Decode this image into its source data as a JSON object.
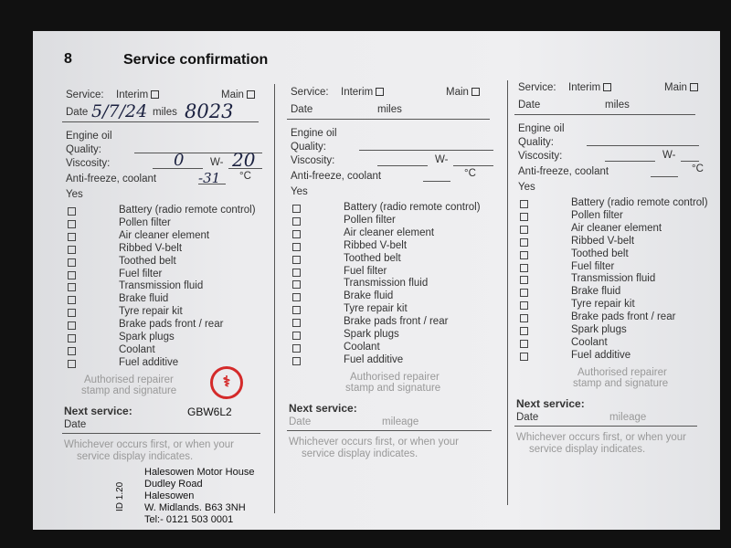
{
  "page_number": "8",
  "title": "Service confirmation",
  "labels": {
    "service": "Service:",
    "interim": "Interim",
    "main": "Main",
    "date": "Date",
    "miles": "miles",
    "engine_oil": "Engine oil",
    "quality": "Quality:",
    "viscosity": "Viscosity:",
    "w": "W-",
    "antifreeze": "Anti-freeze, coolant",
    "celsius": "°C",
    "yes": "Yes",
    "repairer": "Authorised repairer",
    "stamp_sig": "stamp and signature",
    "next_service": "Next service:",
    "mileage": "mileage",
    "whichever1": "Whichever occurs first, or when your",
    "whichever2": "service display indicates."
  },
  "checklist": [
    "Battery (radio remote control)",
    "Pollen filter",
    "Air cleaner element",
    "Ribbed V-belt",
    "Toothed belt",
    "Fuel filter",
    "Transmission fluid",
    "Brake fluid",
    "Tyre repair kit",
    "Brake pads front / rear",
    "Spark plugs",
    "Coolant",
    "Fuel additive"
  ],
  "handwritten": {
    "date": "5/7/24",
    "miles": "8023",
    "viscosity_low": "0",
    "viscosity_high": "20",
    "antifreeze": "-31"
  },
  "dealer_stamp": {
    "code": "GBW6L2",
    "lines": [
      "Halesowen Motor House",
      "Dudley Road",
      "Halesowen",
      "W. Midlands. B63 3NH",
      "Tel:- 0121 503 0001"
    ],
    "side": "ID 1.20",
    "logo": "Vauxhall griffin",
    "logo_color": "#d42a2a"
  }
}
